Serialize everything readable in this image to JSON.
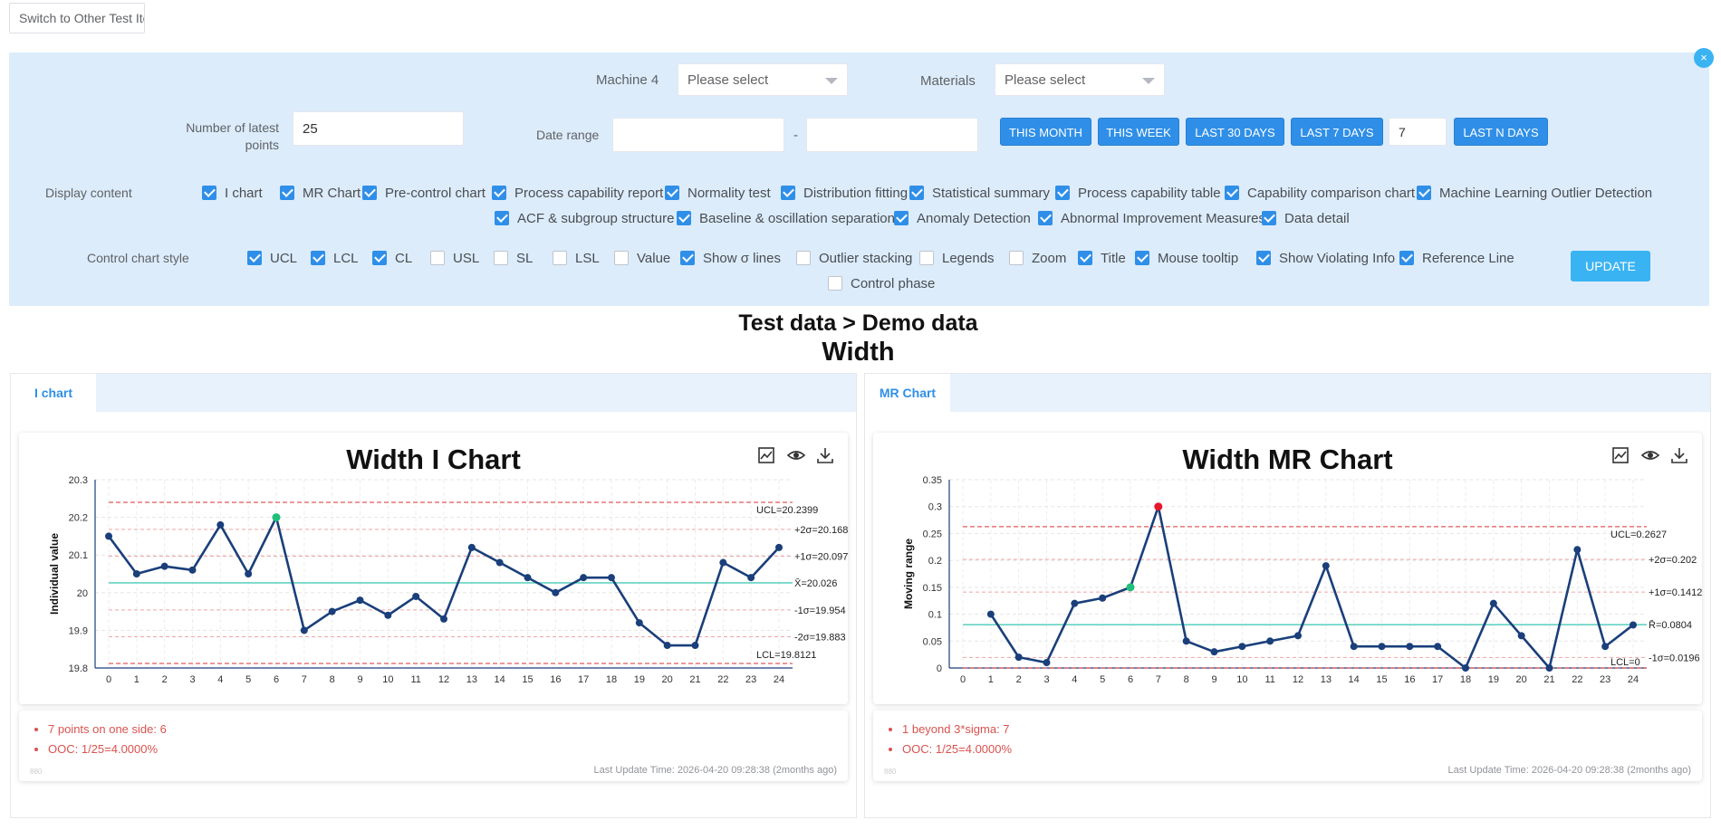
{
  "top": {
    "switch_label": "Switch to Other Test Items"
  },
  "filters": {
    "close_label": "×",
    "machine_label": "Machine 4",
    "machine_placeholder": "Please select",
    "materials_label": "Materials",
    "materials_placeholder": "Please select",
    "latest_points_label_line1": "Number of latest",
    "latest_points_label_line2": "points",
    "latest_points_value": "25",
    "date_range_label": "Date range",
    "date_separator": "-",
    "quick_buttons": [
      "THIS MONTH",
      "THIS WEEK",
      "LAST 30 DAYS",
      "LAST 7 DAYS"
    ],
    "last_n_value": "7",
    "last_n_button": "LAST N DAYS",
    "display_content_label": "Display content",
    "display_content": [
      {
        "label": "I chart",
        "checked": true
      },
      {
        "label": "MR Chart",
        "checked": true
      },
      {
        "label": "Pre-control chart",
        "checked": true
      },
      {
        "label": "Process capability report",
        "checked": true
      },
      {
        "label": "Normality test",
        "checked": true
      },
      {
        "label": "Distribution fitting",
        "checked": true
      },
      {
        "label": "Statistical summary",
        "checked": true
      },
      {
        "label": "Process capability table",
        "checked": true
      },
      {
        "label": "Capability comparison chart",
        "checked": true
      },
      {
        "label": "Machine Learning Outlier Detection",
        "checked": true
      },
      {
        "label": "ACF & subgroup structure",
        "checked": true
      },
      {
        "label": "Baseline & oscillation separation",
        "checked": true
      },
      {
        "label": "Anomaly Detection",
        "checked": true
      },
      {
        "label": "Abnormal Improvement Measures",
        "checked": true
      },
      {
        "label": "Data detail",
        "checked": true
      }
    ],
    "style_label": "Control chart style",
    "chart_style": [
      {
        "label": "UCL",
        "checked": true
      },
      {
        "label": "LCL",
        "checked": true
      },
      {
        "label": "CL",
        "checked": true
      },
      {
        "label": "USL",
        "checked": false
      },
      {
        "label": "SL",
        "checked": false
      },
      {
        "label": "LSL",
        "checked": false
      },
      {
        "label": "Value",
        "checked": false
      },
      {
        "label": "Show σ lines",
        "checked": true
      },
      {
        "label": "Outlier stacking",
        "checked": false
      },
      {
        "label": "Legends",
        "checked": false
      },
      {
        "label": "Zoom",
        "checked": false
      },
      {
        "label": "Title",
        "checked": true
      },
      {
        "label": "Mouse tooltip",
        "checked": true
      },
      {
        "label": "Show Violating Info",
        "checked": true
      },
      {
        "label": "Reference Line",
        "checked": true
      },
      {
        "label": "Control phase",
        "checked": false
      }
    ],
    "update_label": "UPDATE"
  },
  "heading": {
    "path": "Test data > Demo data",
    "item": "Width"
  },
  "colors": {
    "accent": "#2f8fe8",
    "panel_bg": "#dcecfb",
    "line": "#1a3f7a",
    "center_line": "#64d2c3",
    "limit_line": "#e05a5a",
    "sigma_line": "#f0a5a5",
    "flag_red": "#e8162a",
    "flag_green": "#1fbf7a"
  },
  "panels": [
    {
      "tab": "I chart",
      "title": "Width  I  Chart",
      "tools": [
        "chart-type-icon",
        "eye-icon",
        "download-icon"
      ],
      "violations": [
        "7 points on one side: 6",
        "OOC: 1/25=4.0000%"
      ],
      "tiny_label": "880",
      "update_time": "Last Update Time: 2026-04-20 09:28:38 (2months ago)"
    },
    {
      "tab": "MR Chart",
      "title": "Width  MR  Chart",
      "tools": [
        "chart-type-icon",
        "eye-icon",
        "download-icon"
      ],
      "violations": [
        "1 beyond 3*sigma: 7",
        "OOC: 1/25=4.0000%"
      ],
      "tiny_label": "880",
      "update_time": "Last Update Time: 2026-04-20 09:28:38 (2months ago)"
    }
  ],
  "chart_data": [
    {
      "type": "line",
      "title": "Width  I  Chart",
      "ylabel": "Individual value",
      "xlabel": "",
      "x": [
        0,
        1,
        2,
        3,
        4,
        5,
        6,
        7,
        8,
        9,
        10,
        11,
        12,
        13,
        14,
        15,
        16,
        17,
        18,
        19,
        20,
        21,
        22,
        23,
        24
      ],
      "values": [
        20.15,
        20.05,
        20.07,
        20.06,
        20.18,
        20.05,
        20.2,
        19.9,
        19.95,
        19.98,
        19.94,
        19.99,
        19.93,
        20.12,
        20.08,
        20.04,
        20.0,
        20.04,
        20.04,
        19.92,
        19.86,
        19.86,
        20.08,
        20.04,
        20.12
      ],
      "ylim": [
        19.8,
        20.3
      ],
      "yticks": [
        "19.8",
        "19.9",
        "20",
        "20.1",
        "20.2",
        "20.3"
      ],
      "highlight_green": [
        6
      ],
      "highlight_red": [],
      "lines": [
        {
          "kind": "limit",
          "value": 20.2399,
          "label": "UCL=20.2399"
        },
        {
          "kind": "sigma",
          "value": 20.168,
          "label": "+2σ=20.168"
        },
        {
          "kind": "sigma",
          "value": 20.097,
          "label": "+1σ=20.097"
        },
        {
          "kind": "center",
          "value": 20.026,
          "label": "X̄=20.026"
        },
        {
          "kind": "sigma",
          "value": 19.954,
          "label": "-1σ=19.954"
        },
        {
          "kind": "sigma",
          "value": 19.883,
          "label": "-2σ=19.883"
        },
        {
          "kind": "limit",
          "value": 19.8121,
          "label": "LCL=19.8121"
        }
      ],
      "grid": true
    },
    {
      "type": "line",
      "title": "Width  MR  Chart",
      "ylabel": "Moving range",
      "xlabel": "",
      "x": [
        1,
        2,
        3,
        4,
        5,
        6,
        7,
        8,
        9,
        10,
        11,
        12,
        13,
        14,
        15,
        16,
        17,
        18,
        19,
        20,
        21,
        22,
        23,
        24
      ],
      "values": [
        0.1,
        0.02,
        0.01,
        0.12,
        0.13,
        0.15,
        0.3,
        0.05,
        0.03,
        0.04,
        0.05,
        0.06,
        0.19,
        0.04,
        0.04,
        0.04,
        0.04,
        0.0,
        0.12,
        0.06,
        0.0,
        0.22,
        0.04,
        0.08
      ],
      "xticks": [
        0,
        1,
        2,
        3,
        4,
        5,
        6,
        7,
        8,
        9,
        10,
        11,
        12,
        13,
        14,
        15,
        16,
        17,
        18,
        19,
        20,
        21,
        22,
        23,
        24
      ],
      "ylim": [
        0,
        0.35
      ],
      "yticks": [
        "0",
        "0.05",
        "0.1",
        "0.15",
        "0.2",
        "0.25",
        "0.3",
        "0.35"
      ],
      "highlight_green": [
        6
      ],
      "highlight_red": [
        7
      ],
      "lines": [
        {
          "kind": "limit",
          "value": 0.2627,
          "label": "UCL=0.2627"
        },
        {
          "kind": "sigma",
          "value": 0.202,
          "label": "+2σ=0.202"
        },
        {
          "kind": "sigma",
          "value": 0.1412,
          "label": "+1σ=0.1412"
        },
        {
          "kind": "center",
          "value": 0.0804,
          "label": "R̄=0.0804"
        },
        {
          "kind": "sigma",
          "value": 0.0196,
          "label": "-1σ=0.0196"
        },
        {
          "kind": "limit",
          "value": 0,
          "label": "LCL=0"
        }
      ],
      "grid": true
    }
  ]
}
